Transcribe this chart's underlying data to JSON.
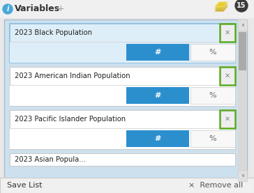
{
  "bg_color": "#e8e8e8",
  "header_bg": "#f0f0f0",
  "title_text": "Variables",
  "title_color": "#333333",
  "info_icon_color": "#4aa8d8",
  "badge_bg": "#3a3a3a",
  "badge_text": "15",
  "badge_text_color": "#ffffff",
  "layer_colors": [
    "#c8a820",
    "#d4b828",
    "#e8cc30"
  ],
  "panel_bg": "#cce0ee",
  "panel_border": "#aabbcc",
  "scrollbar_bg": "#d0d0d0",
  "scrollbar_thumb": "#aaaaaa",
  "card1_bg": "#deeef8",
  "card1_border": "#88bbdd",
  "card_bg": "#ffffff",
  "card_border": "#cccccc",
  "green_x_border": "#5aaa20",
  "green_x_bg": "#eeeeee",
  "x_color": "#888888",
  "blue_btn_bg": "#2b8fce",
  "blue_btn_text": "#ffffff",
  "gray_btn_bg": "#f8f8f8",
  "gray_btn_text": "#666666",
  "variables": [
    "2023 Black Population",
    "2023 American Indian Population",
    "2023 Pacific Islander Population"
  ],
  "partial_text": "2023 Asian Popula...",
  "footer_bg": "#f0f0f0",
  "footer_border": "#cccccc",
  "bottom_left": "Save List",
  "bottom_right": "×  Remove all"
}
